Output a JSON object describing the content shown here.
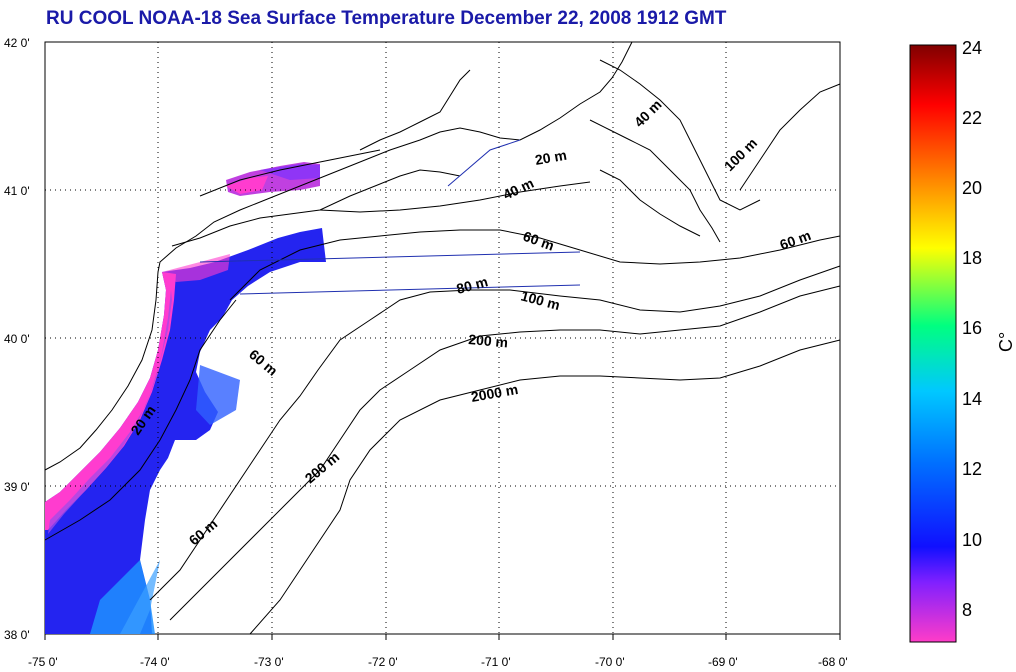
{
  "title": "RU COOL  NOAA-18 Sea Surface Temperature December 22, 2008 1912 GMT",
  "map": {
    "lon_ticks": [
      "-75 0'",
      "-74 0'",
      "-73 0'",
      "-72 0'",
      "-71 0'",
      "-70 0'",
      "-69 0'",
      "-68 0'"
    ],
    "lat_ticks": [
      "42 0'",
      "41 0'",
      "40 0'",
      "39 0'",
      "38 0'"
    ],
    "lon_range": [
      -75,
      -68
    ],
    "lat_range": [
      38,
      42
    ],
    "grid": "dotted",
    "depth_labels": [
      "20 m",
      "40 m",
      "40 m",
      "100 m",
      "60 m",
      "60 m",
      "80 m",
      "100 m",
      "200 m",
      "2000 m",
      "60 m",
      "20 m",
      "200 m",
      "60 m"
    ]
  },
  "colorbar": {
    "ticks": [
      "24",
      "22",
      "20",
      "18",
      "16",
      "14",
      "12",
      "10",
      "8"
    ],
    "range": [
      7,
      24
    ],
    "unit": "C°",
    "colors": [
      "#ff3cc8",
      "#8020ff",
      "#1010ff",
      "#00c8ff",
      "#00ff80",
      "#ffff00",
      "#ff8000",
      "#ff0000",
      "#800000"
    ]
  }
}
